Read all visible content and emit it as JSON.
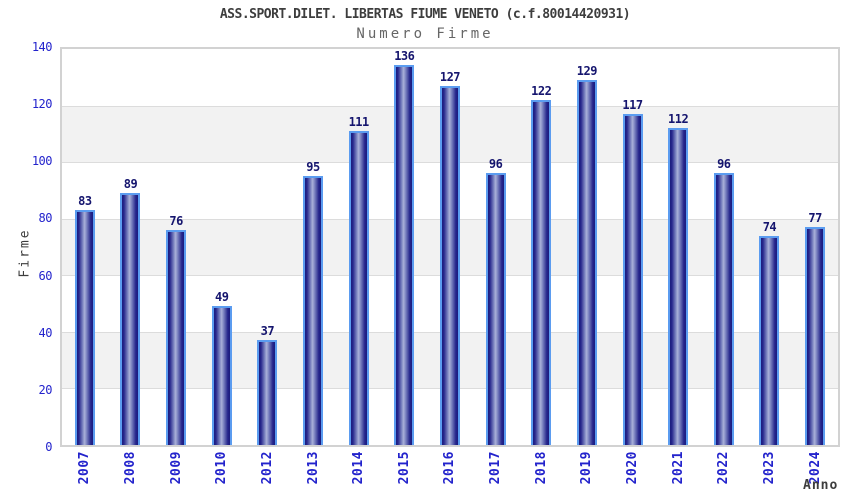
{
  "chart_data": {
    "type": "bar",
    "title": "ASS.SPORT.DILET. LIBERTAS FIUME VENETO (c.f.80014420931)",
    "subtitle": "Numero Firme",
    "xlabel": "Anno",
    "ylabel": "Firme",
    "categories": [
      "2007",
      "2008",
      "2009",
      "2010",
      "2012",
      "2013",
      "2014",
      "2015",
      "2016",
      "2017",
      "2018",
      "2019",
      "2020",
      "2021",
      "2022",
      "2023",
      "2024"
    ],
    "values": [
      83,
      89,
      76,
      49,
      37,
      95,
      111,
      136,
      127,
      96,
      122,
      129,
      117,
      112,
      96,
      74,
      77
    ],
    "ylim": [
      0,
      140
    ],
    "y_ticks": [
      0,
      20,
      40,
      60,
      80,
      100,
      120,
      140
    ],
    "grid": "alternating horizontal bands every 20 units, light gridlines at each tick",
    "legend_position": "none",
    "colors": {
      "bar_edge_dark": "#1b1b7d",
      "bar_highlight": "#aab1d9",
      "bar_border": "#5b9cf0",
      "axis_tick_text": "#2323cc",
      "value_label_text": "#15156e",
      "title_text": "#3d3d3d",
      "subtitle_text": "#666666",
      "band_gray": "#f2f2f2",
      "gridline": "#dcdcdc",
      "plot_border": "#d2d2d2",
      "background": "#ffffff"
    }
  }
}
